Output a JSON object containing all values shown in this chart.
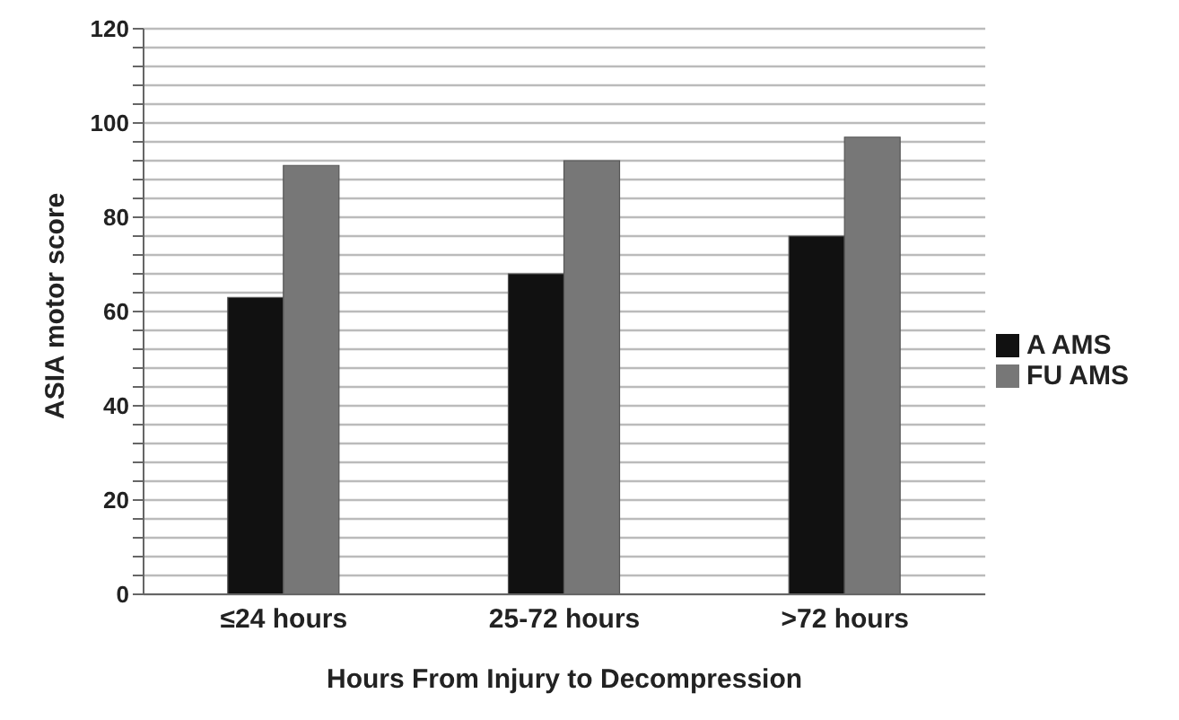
{
  "chart_data": {
    "type": "bar",
    "xlabel": "Hours From Injury to Decompression",
    "ylabel": "ASIA motor score",
    "categories": [
      "≤24 hours",
      "25-72 hours",
      ">72 hours"
    ],
    "series": [
      {
        "name": "A AMS",
        "color": "#111111",
        "values": [
          63,
          68,
          76
        ]
      },
      {
        "name": "FU AMS",
        "color": "#777777",
        "values": [
          91,
          92,
          97
        ]
      }
    ],
    "ylim": [
      0,
      120
    ],
    "yticks": [
      0,
      {
        "value": 4,
        "label": null
      },
      {
        "value": 8,
        "label": null
      },
      {
        "value": 12,
        "label": null
      },
      {
        "value": 16,
        "label": null
      },
      20,
      {
        "value": 24,
        "label": null
      },
      {
        "value": 28,
        "label": null
      },
      {
        "value": 32,
        "label": null
      },
      {
        "value": 36,
        "label": null
      },
      40,
      {
        "value": 44,
        "label": null
      },
      {
        "value": 48,
        "label": null
      },
      {
        "value": 52,
        "label": null
      },
      {
        "value": 56,
        "label": null
      },
      60,
      {
        "value": 64,
        "label": null
      },
      {
        "value": 68,
        "label": null
      },
      {
        "value": 72,
        "label": null
      },
      {
        "value": 76,
        "label": null
      },
      80,
      {
        "value": 84,
        "label": null
      },
      {
        "value": 88,
        "label": null
      },
      {
        "value": 92,
        "label": null
      },
      {
        "value": 96,
        "label": null
      },
      100,
      {
        "value": 104,
        "label": null
      },
      {
        "value": 108,
        "label": null
      },
      {
        "value": 112,
        "label": null
      },
      {
        "value": 116,
        "label": null
      },
      120
    ],
    "grid": "y",
    "legend": "right"
  }
}
